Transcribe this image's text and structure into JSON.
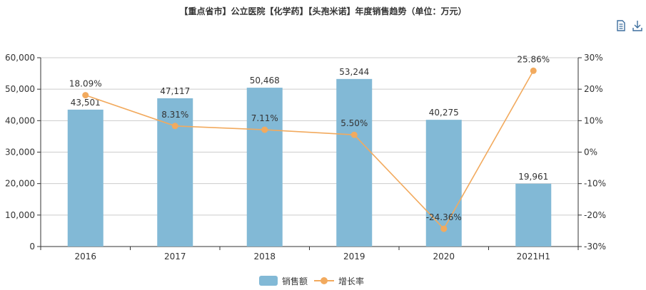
{
  "title": "【重点省市】公立医院【化学药】【头孢米诺】年度销售趋势（单位：万元）",
  "toolbar": {
    "data_view_icon": "data-view-icon",
    "download_icon": "download-icon"
  },
  "colors": {
    "bar": "#82b9d6",
    "line": "#f2aa5e",
    "grid": "#cccccc",
    "axis": "#333333"
  },
  "chart_data": {
    "type": "bar",
    "title": "【重点省市】公立医院【化学药】【头孢米诺】年度销售趋势（单位：万元）",
    "categories": [
      "2016",
      "2017",
      "2018",
      "2019",
      "2020",
      "2021H1"
    ],
    "series": [
      {
        "name": "销售额",
        "type": "bar",
        "axis": "left",
        "values": [
          43501,
          47117,
          50468,
          53244,
          40275,
          19961
        ],
        "labels": [
          "43,501",
          "47,117",
          "50,468",
          "53,244",
          "40,275",
          "19,961"
        ]
      },
      {
        "name": "增长率",
        "type": "line",
        "axis": "right",
        "values": [
          18.09,
          8.31,
          7.11,
          5.5,
          -24.36,
          25.86
        ],
        "labels": [
          "18.09%",
          "8.31%",
          "7.11%",
          "5.50%",
          "-24.36%",
          "25.86%"
        ]
      }
    ],
    "y_left": {
      "min": 0,
      "max": 60000,
      "ticks": [
        "0",
        "10,000",
        "20,000",
        "30,000",
        "40,000",
        "50,000",
        "60,000"
      ]
    },
    "y_right": {
      "min": -30,
      "max": 30,
      "ticks": [
        "-30%",
        "-20%",
        "-10%",
        "0%",
        "10%",
        "20%",
        "30%"
      ]
    },
    "grid": true,
    "legend": "bottom-center"
  }
}
